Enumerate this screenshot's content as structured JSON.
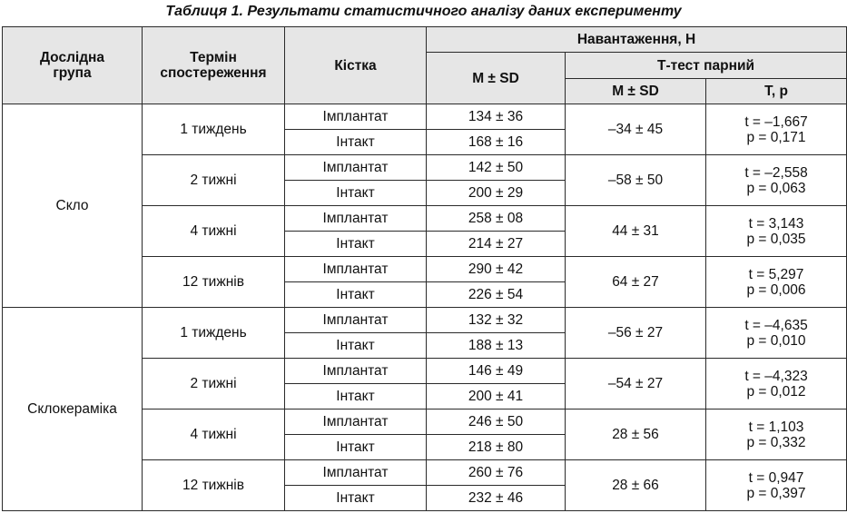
{
  "caption": "Таблиця 1. Результати статистичного аналізу даних експерименту",
  "headers": {
    "group": [
      "Дослідна",
      "група"
    ],
    "term": [
      "Термін",
      "спостереження"
    ],
    "bone": "Кістка",
    "load": "Навантаження, Н",
    "msd": "M ± SD",
    "ttest": "Т-тест парний",
    "ttest_msd": "M ± SD",
    "ttest_tp": "T, p"
  },
  "groups": [
    {
      "name": "Скло",
      "periods": [
        {
          "term": "1 тиждень",
          "rows": [
            {
              "bone": "Імплантат",
              "msd": "134 ± 36"
            },
            {
              "bone": "Інтакт",
              "msd": "168 ± 16"
            }
          ],
          "diff": "–34 ± 45",
          "t": "t = –1,667",
          "p": "p = 0,171"
        },
        {
          "term": "2 тижні",
          "rows": [
            {
              "bone": "Імплантат",
              "msd": "142 ± 50"
            },
            {
              "bone": "Інтакт",
              "msd": "200 ± 29"
            }
          ],
          "diff": "–58 ± 50",
          "t": "t = –2,558",
          "p": "p = 0,063"
        },
        {
          "term": "4 тижні",
          "rows": [
            {
              "bone": "Імплантат",
              "msd": "258 ± 08"
            },
            {
              "bone": "Інтакт",
              "msd": "214 ± 27"
            }
          ],
          "diff": "44 ± 31",
          "t": "t = 3,143",
          "p": "p = 0,035"
        },
        {
          "term": "12 тижнів",
          "rows": [
            {
              "bone": "Імплантат",
              "msd": "290 ± 42"
            },
            {
              "bone": "Інтакт",
              "msd": "226 ± 54"
            }
          ],
          "diff": "64 ± 27",
          "t": "t = 5,297",
          "p": "p = 0,006"
        }
      ]
    },
    {
      "name": "Склокераміка",
      "periods": [
        {
          "term": "1 тиждень",
          "rows": [
            {
              "bone": "Імплантат",
              "msd": "132 ± 32"
            },
            {
              "bone": "Інтакт",
              "msd": "188 ± 13"
            }
          ],
          "diff": "–56 ± 27",
          "t": "t = –4,635",
          "p": "p = 0,010"
        },
        {
          "term": "2 тижні",
          "rows": [
            {
              "bone": "Імплантат",
              "msd": "146 ± 49"
            },
            {
              "bone": "Інтакт",
              "msd": "200 ± 41"
            }
          ],
          "diff": "–54 ± 27",
          "t": "t = –4,323",
          "p": "p = 0,012"
        },
        {
          "term": "4 тижні",
          "rows": [
            {
              "bone": "Імплантат",
              "msd": "246 ± 50"
            },
            {
              "bone": "Інтакт",
              "msd": "218 ± 80"
            }
          ],
          "diff": "28 ± 56",
          "t": "t = 1,103",
          "p": "p = 0,332"
        },
        {
          "term": "12 тижнів",
          "rows": [
            {
              "bone": "Імплантат",
              "msd": "260 ± 76"
            },
            {
              "bone": "Інтакт",
              "msd": "232 ± 46"
            }
          ],
          "diff": "28 ± 66",
          "t": "t = 0,947",
          "p": "p = 0,397"
        }
      ]
    }
  ]
}
